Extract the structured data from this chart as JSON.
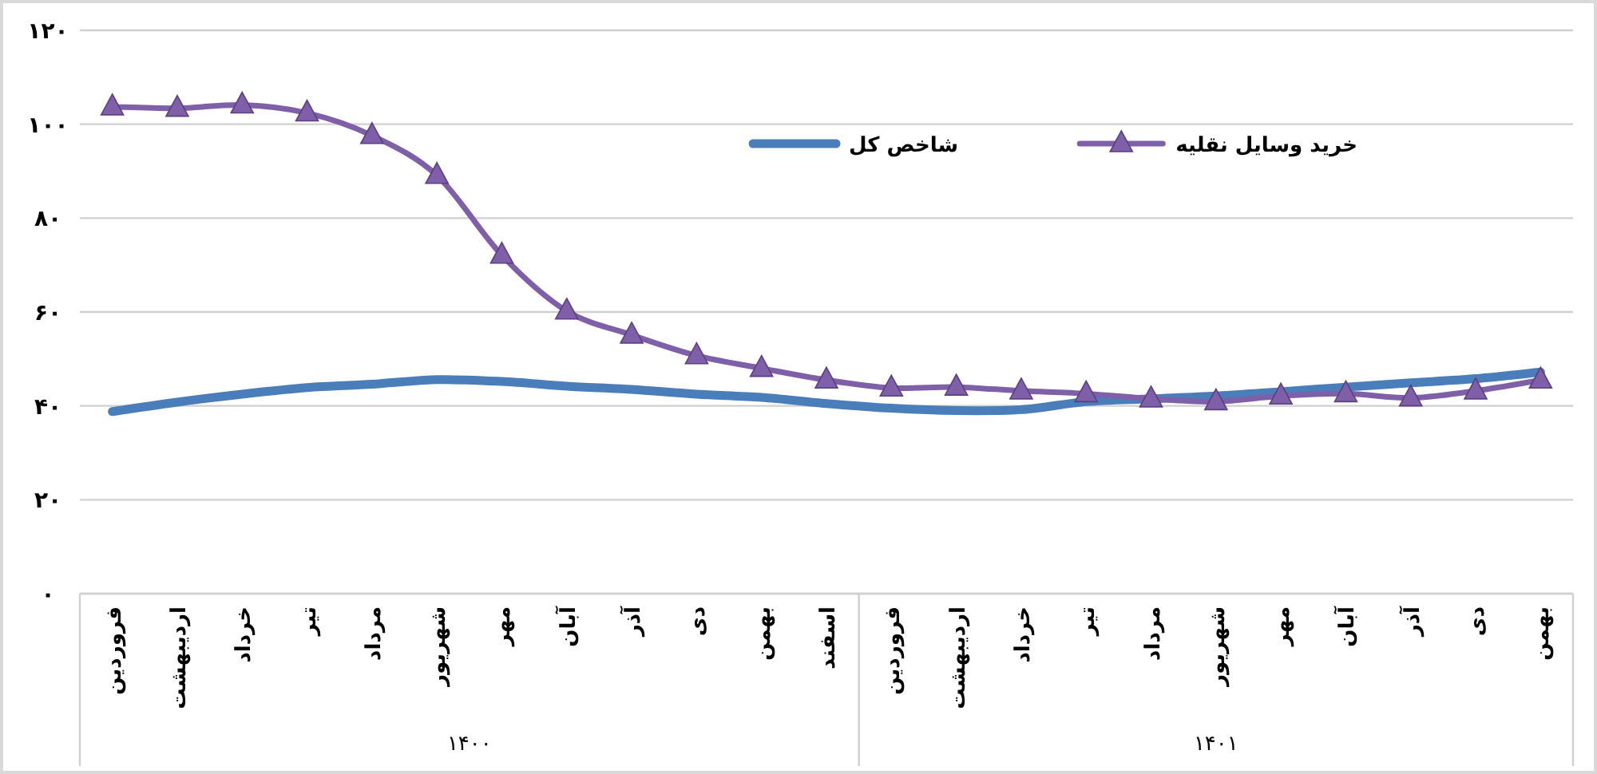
{
  "chart_data": {
    "type": "line",
    "categories": [
      "فروردین",
      "اردیبهشت",
      "خرداد",
      "تیر",
      "مرداد",
      "شهریور",
      "مهر",
      "آبان",
      "آذر",
      "دی",
      "بهمن",
      "اسفند",
      "فروردین",
      "اردیبهشت",
      "خرداد",
      "تیر",
      "مرداد",
      "شهریور",
      "مهر",
      "آبان",
      "آذر",
      "دی",
      "بهمن"
    ],
    "series": [
      {
        "name": "شاخص کل",
        "color": "#4a7ebb",
        "marker": "none",
        "values": [
          38.8,
          40.8,
          42.5,
          43.9,
          44.6,
          45.6,
          45.2,
          44.2,
          43.5,
          42.5,
          41.8,
          40.5,
          39.5,
          39,
          39.2,
          40.9,
          41.5,
          42.1,
          43,
          44,
          44.9,
          45.8,
          47.2
        ]
      },
      {
        "name": "خرید وسایل نقلیه",
        "color": "#7f5fa8",
        "marker": "triangle",
        "values": [
          103.7,
          103.4,
          104.1,
          102.4,
          97.6,
          89.1,
          72.1,
          60.2,
          55.1,
          50.7,
          48,
          45.5,
          43.8,
          44,
          43.2,
          42.6,
          41.5,
          40.9,
          42.1,
          42.6,
          41.7,
          43.2,
          45.5
        ]
      }
    ],
    "ylim": [
      0,
      120
    ],
    "yticks": [
      {
        "value": 0,
        "label": "۰"
      },
      {
        "value": 20,
        "label": "۲۰"
      },
      {
        "value": 40,
        "label": "۴۰"
      },
      {
        "value": 60,
        "label": "۶۰"
      },
      {
        "value": 80,
        "label": "۸۰"
      },
      {
        "value": 100,
        "label": "۱۰۰"
      },
      {
        "value": 120,
        "label": "۱۲۰"
      }
    ],
    "grid": "y",
    "legend": "top",
    "annotations": [
      "۱۴۰۰",
      "۱۴۰۱"
    ]
  }
}
